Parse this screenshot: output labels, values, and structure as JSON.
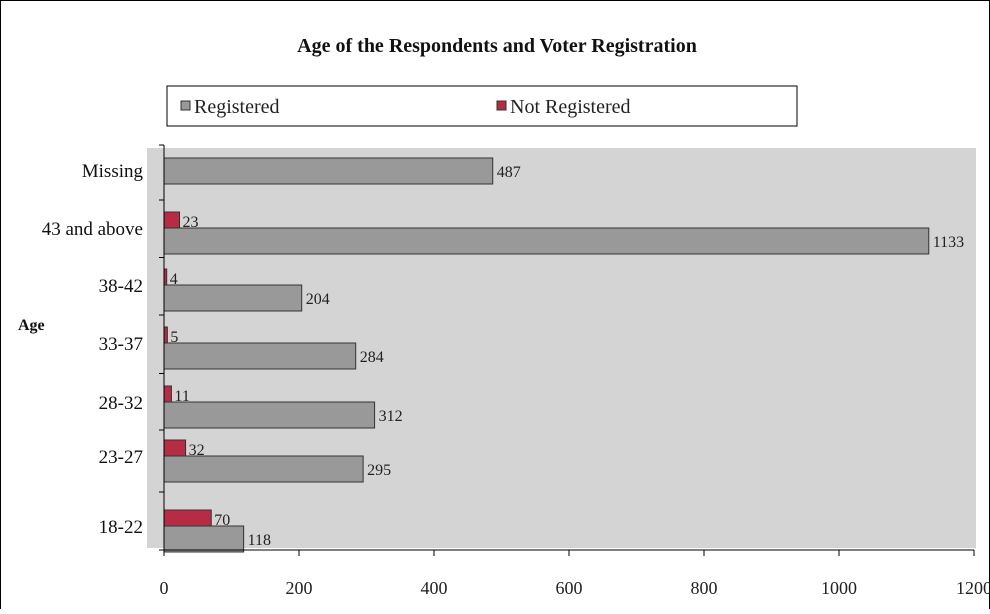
{
  "chart_data": {
    "type": "bar",
    "orientation": "horizontal",
    "title": "Age of the Respondents and Voter Registration",
    "ylabel": "Age",
    "xlabel": "",
    "categories": [
      "18-22",
      "23-27",
      "28-32",
      "33-37",
      "38-42",
      "43 and above",
      "Missing"
    ],
    "series": [
      {
        "name": "Registered",
        "color": "#999999",
        "values": [
          118,
          295,
          312,
          284,
          204,
          1133,
          487
        ]
      },
      {
        "name": "Not Registered",
        "color": "#b52c44",
        "values": [
          70,
          32,
          11,
          5,
          4,
          23,
          null
        ]
      }
    ],
    "x_ticks": [
      0,
      200,
      400,
      600,
      800,
      1000,
      1200
    ],
    "xlim": [
      0,
      1200
    ],
    "legend_position": "top",
    "plot_background": "#d4d4d4",
    "grid": false,
    "data_labels": true
  }
}
